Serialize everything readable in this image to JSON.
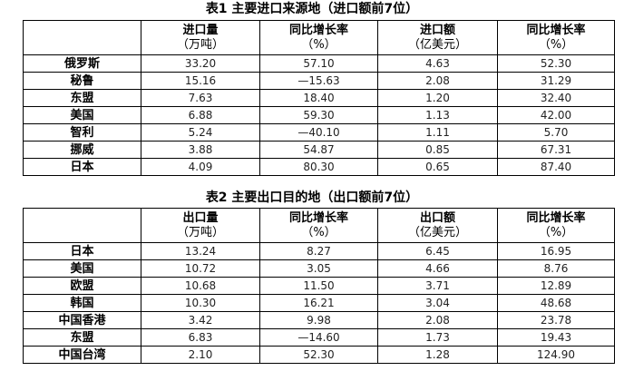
{
  "tables": [
    {
      "title": "表1  主要进口来源地（进口额前7位）",
      "headers": [
        {
          "l1": "进口量",
          "l2": "（万吨）"
        },
        {
          "l1": "同比增长率",
          "l2": "（%）"
        },
        {
          "l1": "进口额",
          "l2": "（亿美元）"
        },
        {
          "l1": "同比增长率",
          "l2": "（%）"
        }
      ],
      "rows": [
        [
          "俄罗斯",
          "33.20",
          "57.10",
          "4.63",
          "52.30"
        ],
        [
          "秘鲁",
          "15.16",
          "—15.63",
          "2.08",
          "31.29"
        ],
        [
          "东盟",
          "7.63",
          "18.40",
          "1.20",
          "32.40"
        ],
        [
          "美国",
          "6.88",
          "59.30",
          "1.13",
          "42.00"
        ],
        [
          "智利",
          "5.24",
          "—40.10",
          "1.11",
          "5.70"
        ],
        [
          "挪威",
          "3.88",
          "54.87",
          "0.85",
          "67.31"
        ],
        [
          "日本",
          "4.09",
          "80.30",
          "0.65",
          "87.40"
        ]
      ]
    },
    {
      "title": "表2  主要出口目的地（出口额前7位）",
      "headers": [
        {
          "l1": "出口量",
          "l2": "（万吨）"
        },
        {
          "l1": "同比增长率",
          "l2": "（%）"
        },
        {
          "l1": "出口额",
          "l2": "（亿美元）"
        },
        {
          "l1": "同比增长率",
          "l2": "（%）"
        }
      ],
      "rows": [
        [
          "日本",
          "13.24",
          "8.27",
          "6.45",
          "16.95"
        ],
        [
          "美国",
          "10.72",
          "3.05",
          "4.66",
          "8.76"
        ],
        [
          "欧盟",
          "10.68",
          "11.50",
          "3.71",
          "12.89"
        ],
        [
          "韩国",
          "10.30",
          "16.21",
          "3.04",
          "48.68"
        ],
        [
          "中国香港",
          "3.42",
          "9.98",
          "2.08",
          "23.78"
        ],
        [
          "东盟",
          "6.83",
          "—14.60",
          "1.73",
          "19.43"
        ],
        [
          "中国台湾",
          "2.10",
          "52.30",
          "1.28",
          "124.90"
        ]
      ]
    }
  ]
}
